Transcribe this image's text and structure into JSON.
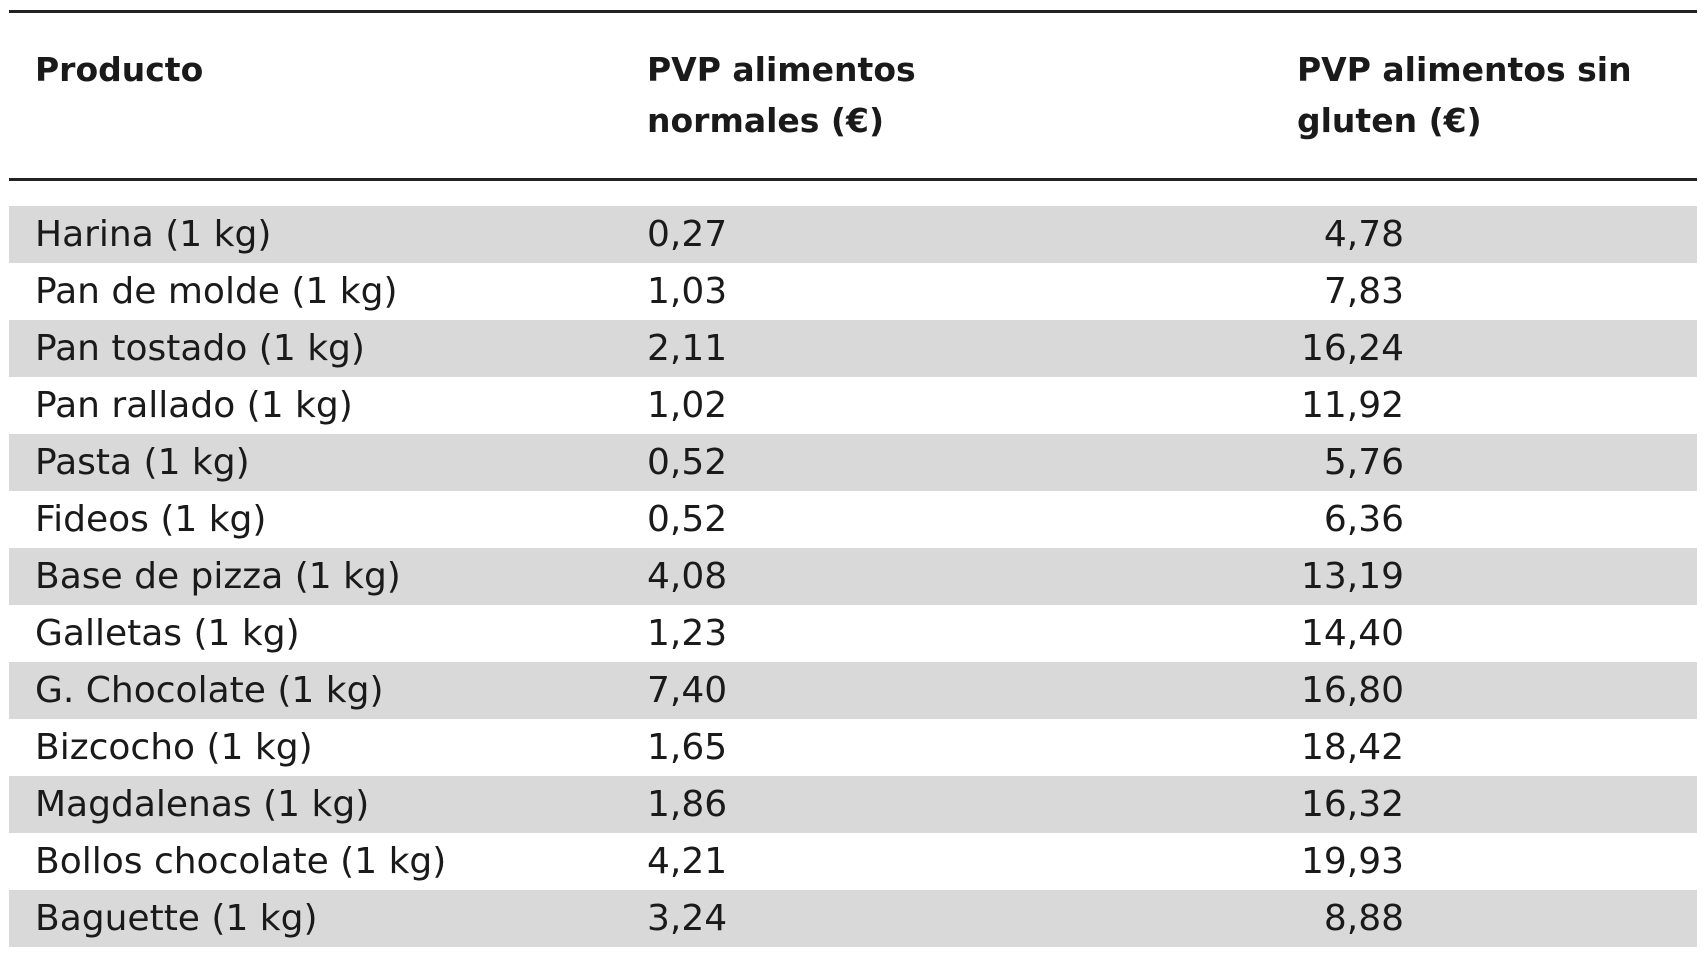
{
  "table": {
    "header": [
      "Producto",
      "PVP alimentos normales (€)",
      "PVP alimentos sin gluten (€)"
    ],
    "rows": [
      [
        "Harina (1 kg)",
        "0,27",
        "4,78"
      ],
      [
        "Pan de molde (1 kg)",
        "1,03",
        "7,83"
      ],
      [
        "Pan tostado (1 kg)",
        "2,11",
        "16,24"
      ],
      [
        "Pan rallado (1 kg)",
        "1,02",
        "11,92"
      ],
      [
        "Pasta (1 kg)",
        "0,52",
        "5,76"
      ],
      [
        "Fideos (1 kg)",
        "0,52",
        "6,36"
      ],
      [
        "Base de pizza (1 kg)",
        "4,08",
        "13,19"
      ],
      [
        "Galletas (1 kg)",
        "1,23",
        "14,40"
      ],
      [
        "G. Chocolate (1 kg)",
        "7,40",
        "16,80"
      ],
      [
        "Bizcocho (1 kg)",
        "1,65",
        "18,42"
      ],
      [
        "Magdalenas (1 kg)",
        "1,86",
        "16,32"
      ],
      [
        "Bollos chocolate (1 kg)",
        "4,21",
        "19,93"
      ],
      [
        "Baguette (1 kg)",
        "3,24",
        "8,88"
      ]
    ]
  }
}
